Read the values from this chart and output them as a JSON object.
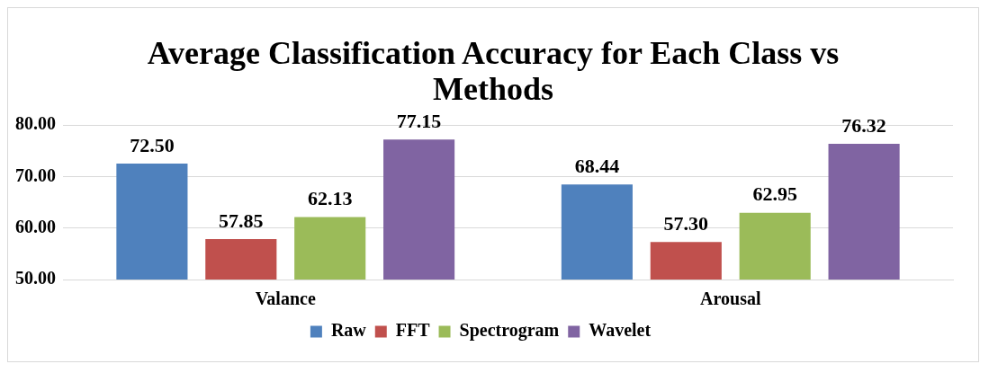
{
  "chart_data": {
    "type": "bar",
    "title": "Average Classification Accuracy for Each Class vs Methods",
    "categories": [
      "Valance",
      "Arousal"
    ],
    "series": [
      {
        "name": "Raw",
        "color": "#4f81bd",
        "values": [
          72.5,
          68.44
        ],
        "value_labels": [
          "72.50",
          "68.44"
        ]
      },
      {
        "name": "FFT",
        "color": "#c0504d",
        "values": [
          57.85,
          57.3
        ],
        "value_labels": [
          "57.85",
          "57.30"
        ]
      },
      {
        "name": "Spectrogram",
        "color": "#9bbb59",
        "values": [
          62.13,
          62.95
        ],
        "value_labels": [
          "62.13",
          "62.95"
        ]
      },
      {
        "name": "Wavelet",
        "color": "#8064a2",
        "values": [
          77.15,
          76.32
        ],
        "value_labels": [
          "77.15",
          "76.32"
        ]
      }
    ],
    "ylim": [
      50,
      80
    ],
    "yticks": [
      {
        "value": 50,
        "label": "50.00"
      },
      {
        "value": 60,
        "label": "60.00"
      },
      {
        "value": 70,
        "label": "70.00"
      },
      {
        "value": 80,
        "label": "80.00"
      }
    ],
    "grid": "y",
    "legend": "bottom"
  }
}
